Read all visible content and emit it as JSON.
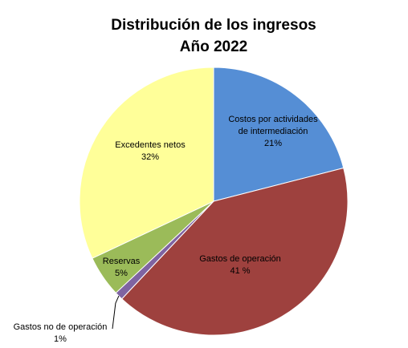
{
  "chart_data": {
    "type": "pie",
    "title": "Distribución de los ingresos",
    "subtitle": "Año 2022",
    "slices": [
      {
        "name": "Costos por actividades de intermediación",
        "label_lines": [
          "Costos por actividades",
          "de intermediación",
          "21%"
        ],
        "value": 21,
        "color": "#558ED5"
      },
      {
        "name": "Gastos de operación",
        "label_lines": [
          "Gastos de operación",
          "41 %"
        ],
        "value": 41,
        "color": "#9E413E"
      },
      {
        "name": "Gastos no de operación",
        "label_lines": [
          "Gastos no de operación",
          "1%"
        ],
        "value": 1,
        "color": "#7F64A2"
      },
      {
        "name": "Reservas",
        "label_lines": [
          "Reservas",
          "5%"
        ],
        "value": 5,
        "color": "#9BBB59"
      },
      {
        "name": "Excedentes netos",
        "label_lines": [
          "Excedentes netos",
          "32%"
        ],
        "value": 32,
        "color": "#FFFF99"
      }
    ]
  }
}
